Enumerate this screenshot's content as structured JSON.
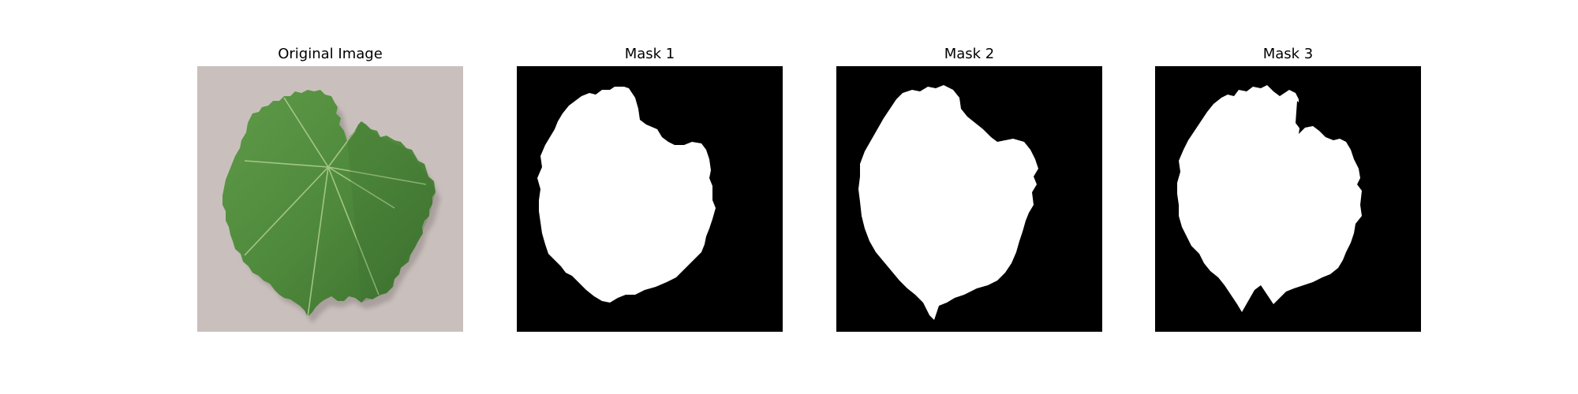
{
  "figure": {
    "background": "#ffffff",
    "panels": [
      {
        "title": "Original Image",
        "kind": "photo",
        "subject": "leaf-photo"
      },
      {
        "title": "Mask 1",
        "kind": "mask",
        "subject": "leaf-mask-1"
      },
      {
        "title": "Mask 2",
        "kind": "mask",
        "subject": "leaf-mask-2"
      },
      {
        "title": "Mask 3",
        "kind": "mask",
        "subject": "leaf-mask-3"
      }
    ]
  },
  "colors": {
    "photo_background": "#c9c0bd",
    "leaf": "#4f8a3c",
    "leaf_dark": "#3c6f2e",
    "vein": "#b8d49a",
    "mask_background": "#000000",
    "mask_foreground": "#ffffff"
  }
}
